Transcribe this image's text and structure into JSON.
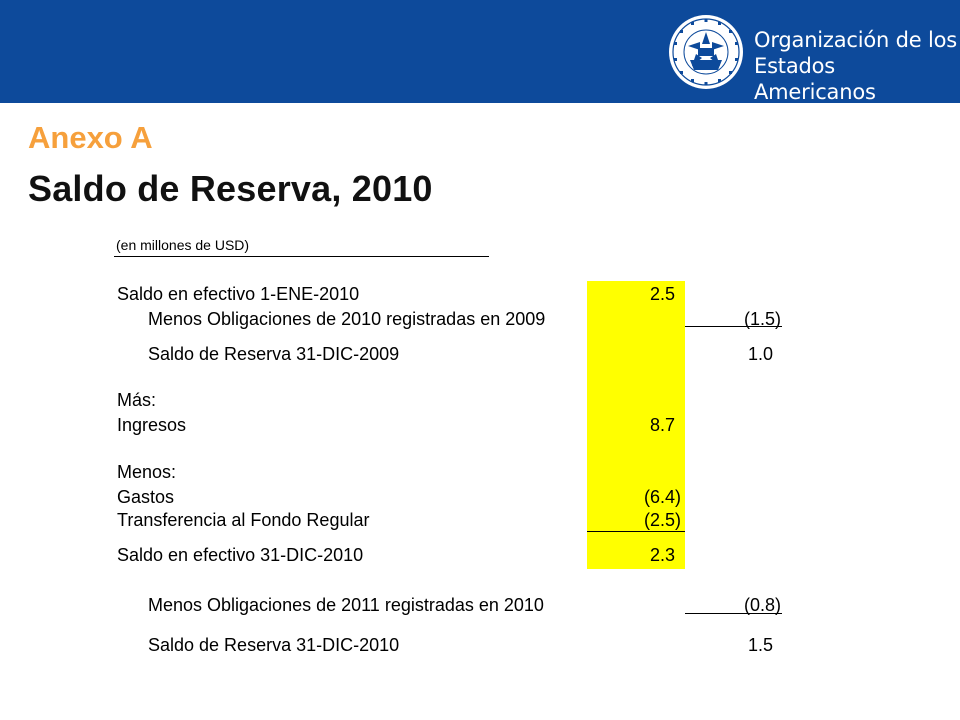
{
  "header": {
    "org_line1": "Organización de los",
    "org_line2": "Estados Americanos",
    "colors": {
      "banner": "#0d4a9b",
      "accent": "#f6a03c",
      "highlight": "#ffff00"
    }
  },
  "titles": {
    "annex": "Anexo A",
    "main": "Saldo de Reserva, 2010"
  },
  "table": {
    "units": "(en millones de USD)",
    "rows": [
      {
        "label": "Saldo en efectivo 1-ENE-2010",
        "col1": "2.5",
        "col2": ""
      },
      {
        "label": "Menos Obligaciones de 2010 registradas en 2009",
        "col1": "",
        "col2": "(1.5)"
      },
      {
        "label": "Saldo de Reserva 31-DIC-2009",
        "col1": "",
        "col2": "1.0"
      },
      {
        "label": "Más:",
        "col1": "",
        "col2": ""
      },
      {
        "label": "Ingresos",
        "col1": "8.7",
        "col2": ""
      },
      {
        "label": "Menos:",
        "col1": "",
        "col2": ""
      },
      {
        "label": "Gastos",
        "col1": "(6.4)",
        "col2": ""
      },
      {
        "label": "Transferencia al Fondo Regular",
        "col1": "(2.5)",
        "col2": ""
      },
      {
        "label": "Saldo en efectivo 31-DIC-2010",
        "col1": "2.3",
        "col2": ""
      },
      {
        "label": "Menos Obligaciones de 2011 registradas en 2010",
        "col1": "",
        "col2": "(0.8)"
      },
      {
        "label": "Saldo de Reserva 31-DIC-2010",
        "col1": "",
        "col2": "1.5"
      }
    ]
  }
}
